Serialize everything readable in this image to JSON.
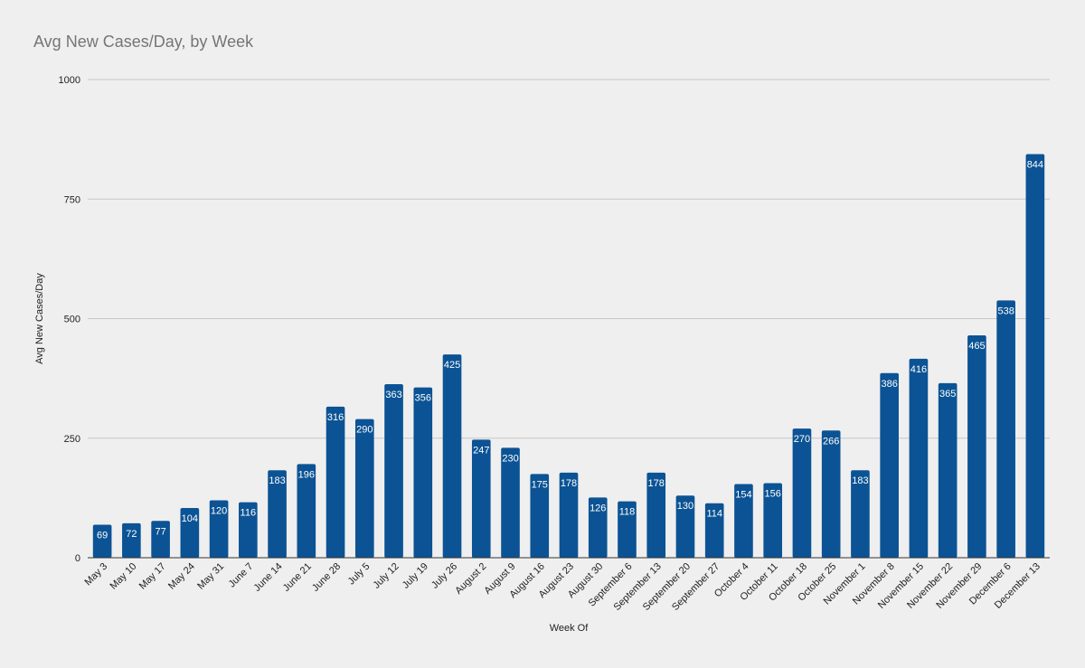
{
  "chart_data": {
    "type": "bar",
    "title": "Avg New Cases/Day, by Week",
    "xlabel": "Week Of",
    "ylabel": "Avg New Cases/Day",
    "ylim": [
      0,
      1000
    ],
    "yticks": [
      0,
      250,
      500,
      750,
      1000
    ],
    "grid": true,
    "legend": "none",
    "bar_color": "#0b5394",
    "categories": [
      "May 3",
      "May 10",
      "May 17",
      "May 24",
      "May 31",
      "June 7",
      "June 14",
      "June 21",
      "June 28",
      "July 5",
      "July 12",
      "July 19",
      "July 26",
      "August 2",
      "August 9",
      "August 16",
      "August 23",
      "August 30",
      "September 6",
      "September 13",
      "September 20",
      "September 27",
      "October 4",
      "October 11",
      "October 18",
      "October 25",
      "November 1",
      "November 8",
      "November 15",
      "November 22",
      "November 29",
      "December 6",
      "December 13"
    ],
    "values": [
      69,
      72,
      77,
      104,
      120,
      116,
      183,
      196,
      316,
      290,
      363,
      356,
      425,
      247,
      230,
      175,
      178,
      126,
      118,
      178,
      130,
      114,
      154,
      156,
      270,
      266,
      183,
      386,
      416,
      365,
      465,
      538,
      844
    ]
  }
}
